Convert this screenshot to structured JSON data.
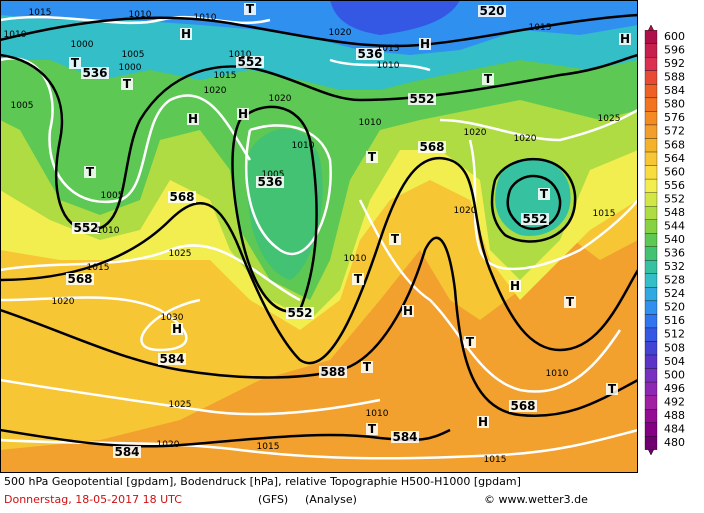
{
  "map_labels": [
    "1015",
    "1010",
    "1010",
    "T",
    "520",
    "1015",
    "1010",
    "1000",
    "1005",
    "T",
    "536",
    "1000",
    "552",
    "1010",
    "H",
    "1020",
    "536",
    "H",
    "1015",
    "1010",
    "T",
    "1015",
    "1020",
    "1020",
    "552",
    "T",
    "H",
    "1005",
    "H",
    "H",
    "1010",
    "1020",
    "1020",
    "1025",
    "1010",
    "568",
    "T",
    "T",
    "1005",
    "536",
    "1005",
    "T",
    "568",
    "1020",
    "1015",
    "552",
    "1010",
    "552",
    "T",
    "1025",
    "1010",
    "1015",
    "568",
    "T",
    "H",
    "T",
    "1020",
    "H",
    "552",
    "1030",
    "H",
    "T",
    "584",
    "T",
    "588",
    "1010",
    "T",
    "1025",
    "568",
    "1010",
    "T",
    "584",
    "H",
    "1020",
    "1015",
    "584",
    "1015"
  ],
  "legend": {
    "labels": [
      600,
      596,
      592,
      588,
      584,
      580,
      576,
      572,
      568,
      564,
      560,
      556,
      552,
      548,
      544,
      540,
      536,
      532,
      528,
      524,
      520,
      516,
      512,
      508,
      504,
      500,
      496,
      492,
      488,
      484,
      480
    ],
    "colors": [
      "#b0104a",
      "#c8204e",
      "#dc3050",
      "#e84a34",
      "#ee6024",
      "#f27420",
      "#f48a22",
      "#f29e2c",
      "#f4b22a",
      "#f6c634",
      "#f8dc40",
      "#f2ee50",
      "#d2e646",
      "#aedc42",
      "#86d242",
      "#5ec854",
      "#42c272",
      "#36c2a0",
      "#34bec8",
      "#30a8e2",
      "#3090f0",
      "#3074f0",
      "#3458e4",
      "#4444d4",
      "#5c34c8",
      "#7830c0",
      "#8c28b4",
      "#a020a4",
      "#940c94",
      "#840084",
      "#700070"
    ]
  },
  "footer": {
    "line1": "500 hPa Geopotential [gpdam], Bodendruck [hPa], relative Topographie H500-H1000 [gpdam]",
    "date": "Donnerstag, 18-05-2017  18 UTC",
    "model": "(GFS)",
    "run": "(Analyse)",
    "source": "© www.wetter3.de"
  }
}
